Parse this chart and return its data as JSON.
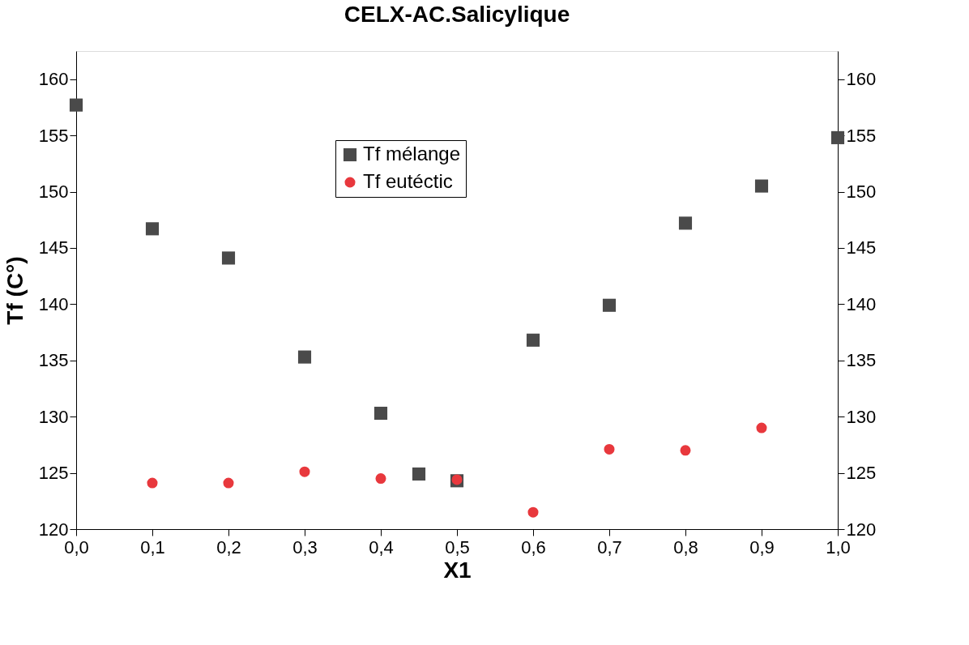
{
  "chart_data": {
    "type": "scatter",
    "title": "CELX-AC.Salicylique",
    "xlabel": "X1",
    "ylabel": "Tf (C°)",
    "xlim": [
      0,
      1
    ],
    "xticks": [
      {
        "value": 0,
        "label": "0,0"
      },
      {
        "value": 0.1,
        "label": "0,1"
      },
      {
        "value": 0.2,
        "label": "0,2"
      },
      {
        "value": 0.3,
        "label": "0,3"
      },
      {
        "value": 0.4,
        "label": "0,4"
      },
      {
        "value": 0.5,
        "label": "0,5"
      },
      {
        "value": 0.6,
        "label": "0,6"
      },
      {
        "value": 0.7,
        "label": "0,7"
      },
      {
        "value": 0.8,
        "label": "0,8"
      },
      {
        "value": 0.9,
        "label": "0,9"
      },
      {
        "value": 1,
        "label": "1,0"
      }
    ],
    "ylim": [
      120,
      162.5
    ],
    "yticks": [
      120,
      125,
      130,
      135,
      140,
      145,
      150,
      155,
      160
    ],
    "y2lim": [
      120,
      162.5
    ],
    "y2ticks": [
      120,
      125,
      130,
      135,
      140,
      145,
      150,
      155,
      160
    ],
    "grid": false,
    "legend": "top",
    "series": [
      {
        "name": "Tf mélange",
        "color": "#4a4a4a",
        "marker": "square",
        "x": [
          0,
          0.1,
          0.2,
          0.3,
          0.4,
          0.45,
          0.5,
          0.6,
          0.7,
          0.8,
          0.9,
          1.0
        ],
        "values": [
          157.7,
          146.7,
          144.1,
          135.3,
          130.3,
          124.9,
          124.3,
          136.8,
          139.9,
          147.2,
          150.5,
          154.8
        ]
      },
      {
        "name": "Tf eutéctic",
        "color": "#e8383d",
        "marker": "circle",
        "x": [
          0.1,
          0.2,
          0.3,
          0.4,
          0.5,
          0.6,
          0.7,
          0.8,
          0.9
        ],
        "values": [
          124.1,
          124.1,
          125.1,
          124.5,
          124.4,
          121.5,
          127.1,
          127.0,
          129.0
        ]
      }
    ]
  }
}
